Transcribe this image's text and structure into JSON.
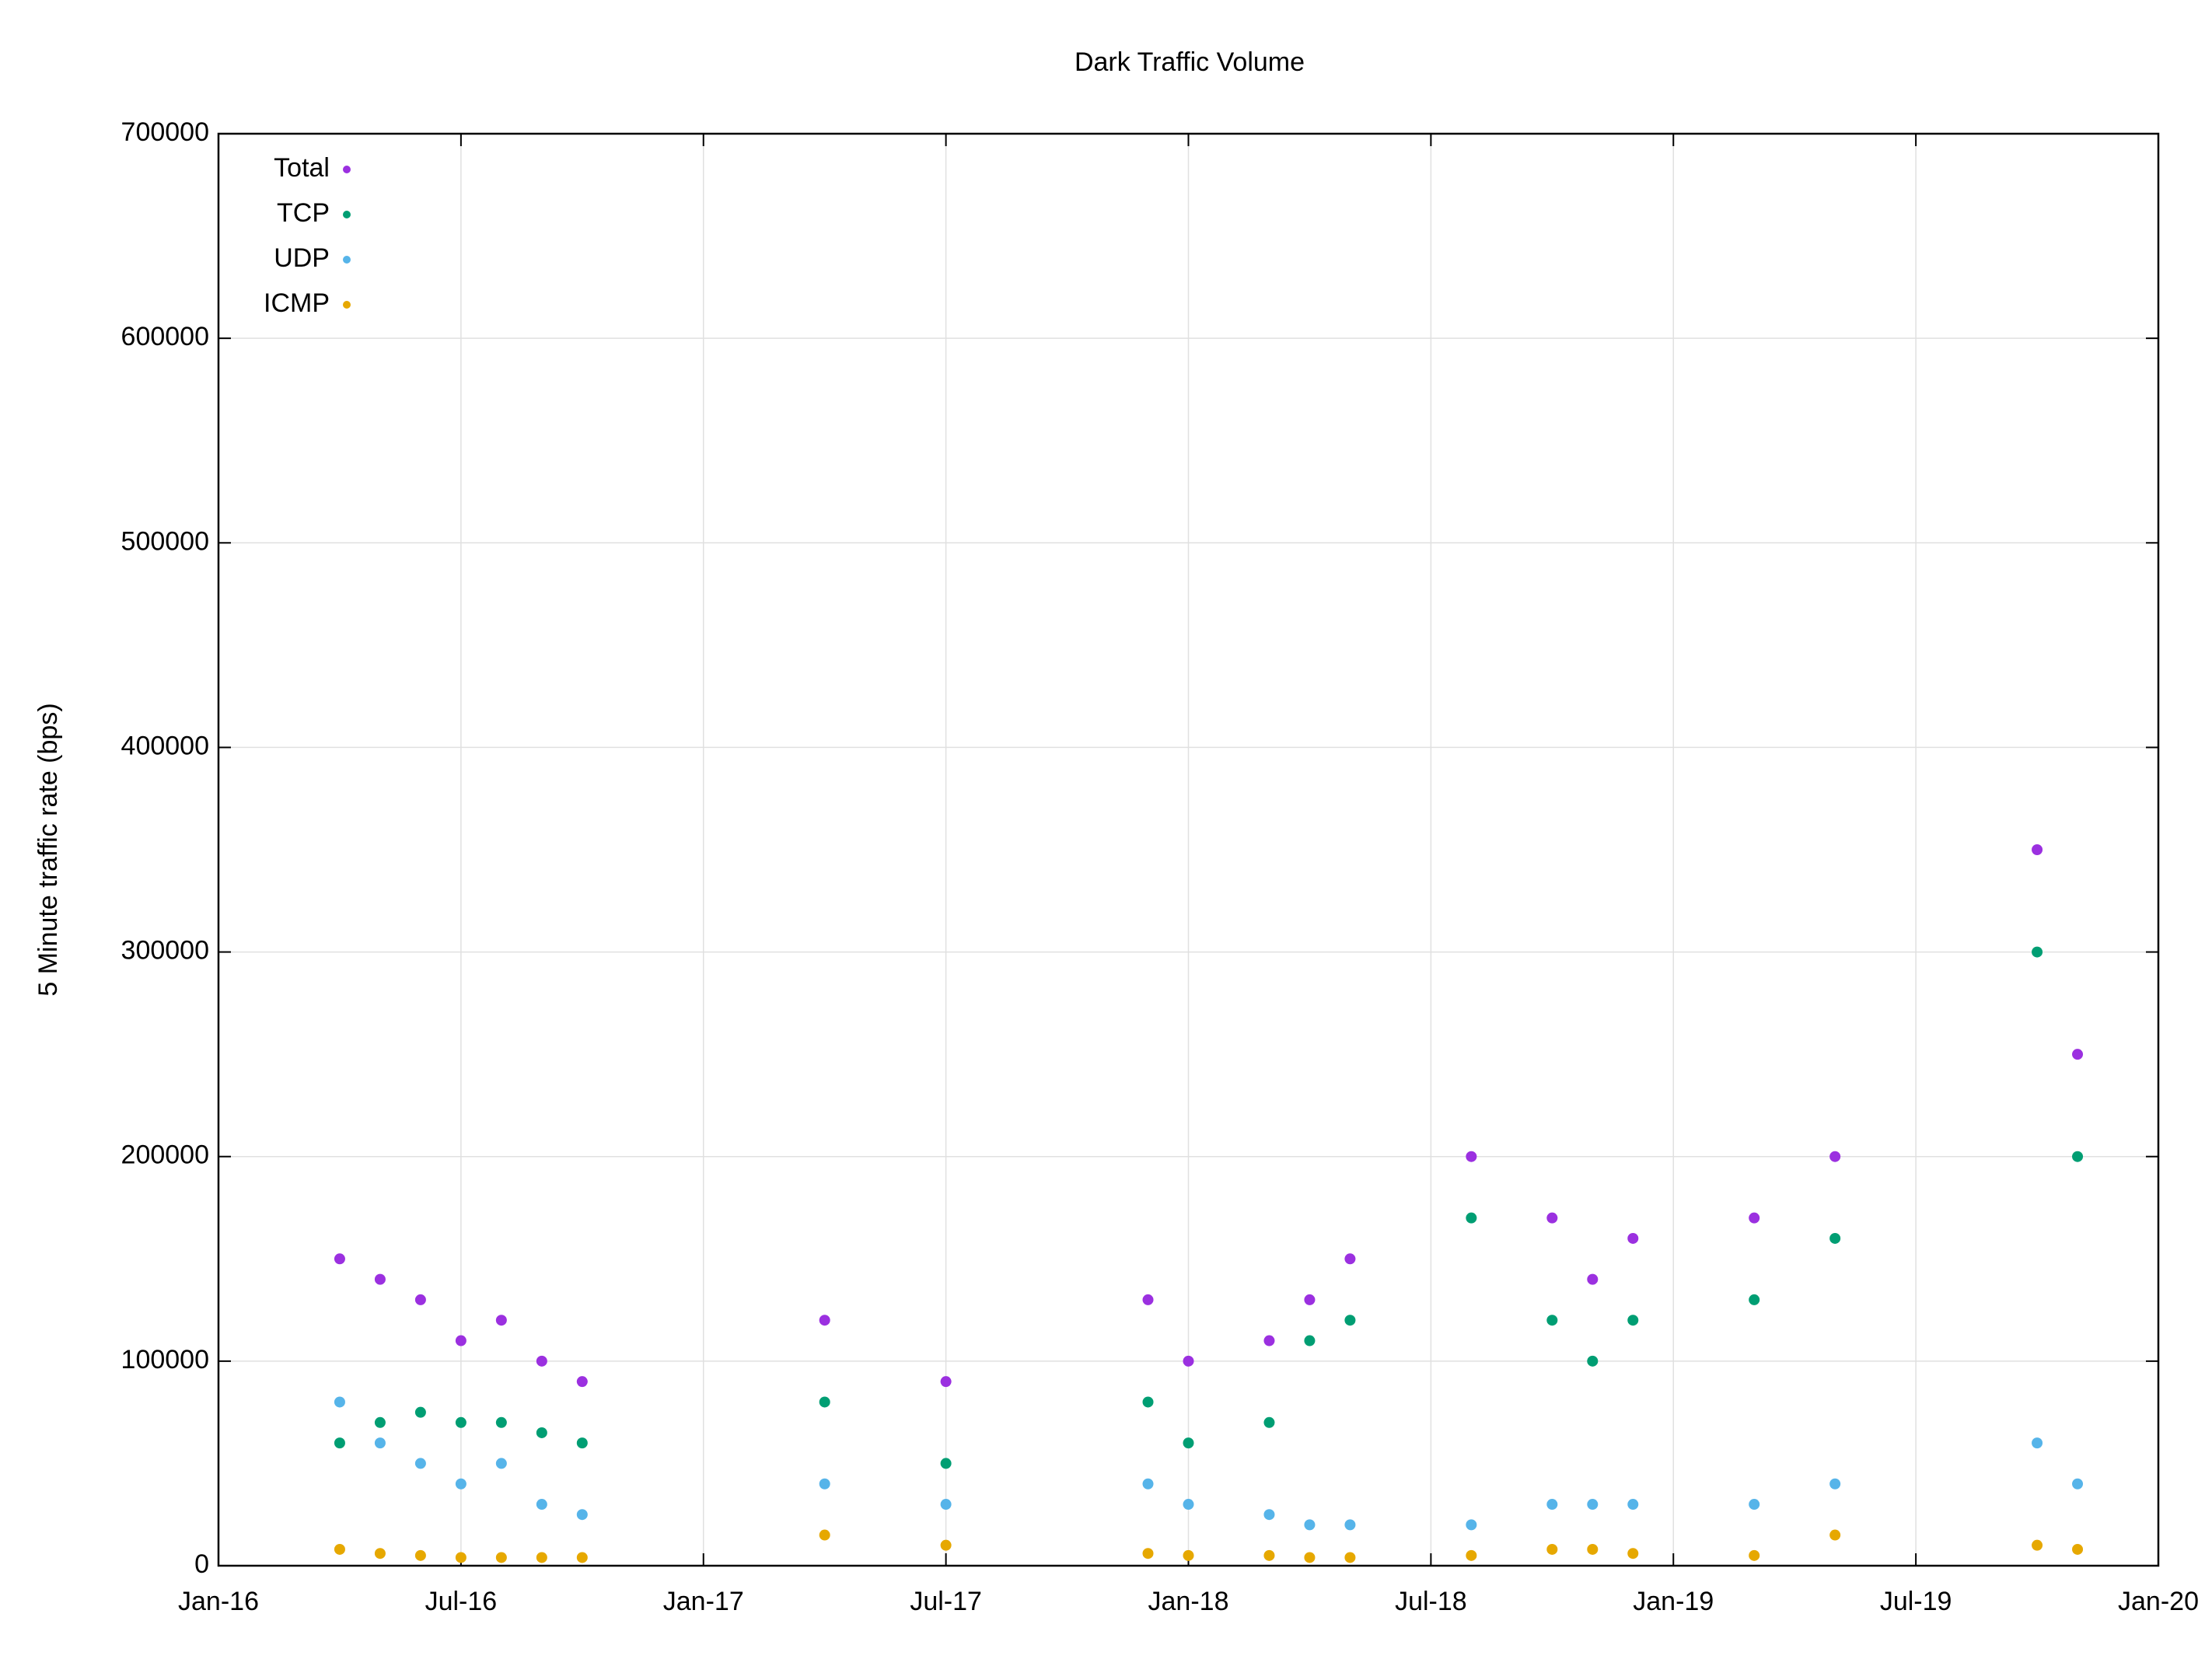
{
  "chart_data": {
    "type": "scatter",
    "title": "Dark Traffic Volume",
    "y_label": "5 Minute traffic rate (bps)",
    "x": [
      "2016-04",
      "2016-05",
      "2016-06",
      "2016-07",
      "2016-08",
      "2016-09",
      "2016-10",
      "2017-04",
      "2017-07",
      "2017-12",
      "2018-01",
      "2018-03",
      "2018-04",
      "2018-05",
      "2018-08",
      "2018-10",
      "2018-11",
      "2018-12",
      "2019-03",
      "2019-05",
      "2019-10",
      "2019-11"
    ],
    "series": [
      {
        "name": "Total",
        "color": "#9b30e0",
        "values": [
          150000,
          140000,
          130000,
          110000,
          120000,
          100000,
          90000,
          120000,
          90000,
          130000,
          100000,
          110000,
          130000,
          150000,
          200000,
          170000,
          140000,
          160000,
          170000,
          200000,
          350000,
          250000
        ]
      },
      {
        "name": "TCP",
        "color": "#009e73",
        "values": [
          60000,
          70000,
          75000,
          70000,
          70000,
          65000,
          60000,
          80000,
          50000,
          80000,
          60000,
          70000,
          110000,
          120000,
          170000,
          120000,
          100000,
          120000,
          130000,
          160000,
          300000,
          200000
        ]
      },
      {
        "name": "UDP",
        "color": "#56b4e9",
        "values": [
          80000,
          60000,
          50000,
          40000,
          50000,
          30000,
          25000,
          40000,
          30000,
          40000,
          30000,
          25000,
          20000,
          20000,
          20000,
          30000,
          30000,
          30000,
          30000,
          40000,
          60000,
          40000
        ]
      },
      {
        "name": "ICMP",
        "color": "#e6a800",
        "values": [
          8000,
          6000,
          5000,
          4000,
          4000,
          4000,
          4000,
          15000,
          10000,
          6000,
          5000,
          5000,
          4000,
          4000,
          5000,
          8000,
          8000,
          6000,
          5000,
          15000,
          10000,
          8000
        ]
      }
    ],
    "xlim": [
      "2016-01",
      "2020-01"
    ],
    "xticks": [
      {
        "value": "2016-01",
        "label": "Jan-16"
      },
      {
        "value": "2016-07",
        "label": "Jul-16"
      },
      {
        "value": "2017-01",
        "label": "Jan-17"
      },
      {
        "value": "2017-07",
        "label": "Jul-17"
      },
      {
        "value": "2018-01",
        "label": "Jan-18"
      },
      {
        "value": "2018-07",
        "label": "Jul-18"
      },
      {
        "value": "2019-01",
        "label": "Jan-19"
      },
      {
        "value": "2019-07",
        "label": "Jul-19"
      },
      {
        "value": "2020-01",
        "label": "Jan-20"
      }
    ],
    "ylim": [
      0,
      700000
    ],
    "yticks": [
      0,
      100000,
      200000,
      300000,
      400000,
      500000,
      600000,
      700000
    ],
    "grid": true,
    "legend": "top-left"
  }
}
